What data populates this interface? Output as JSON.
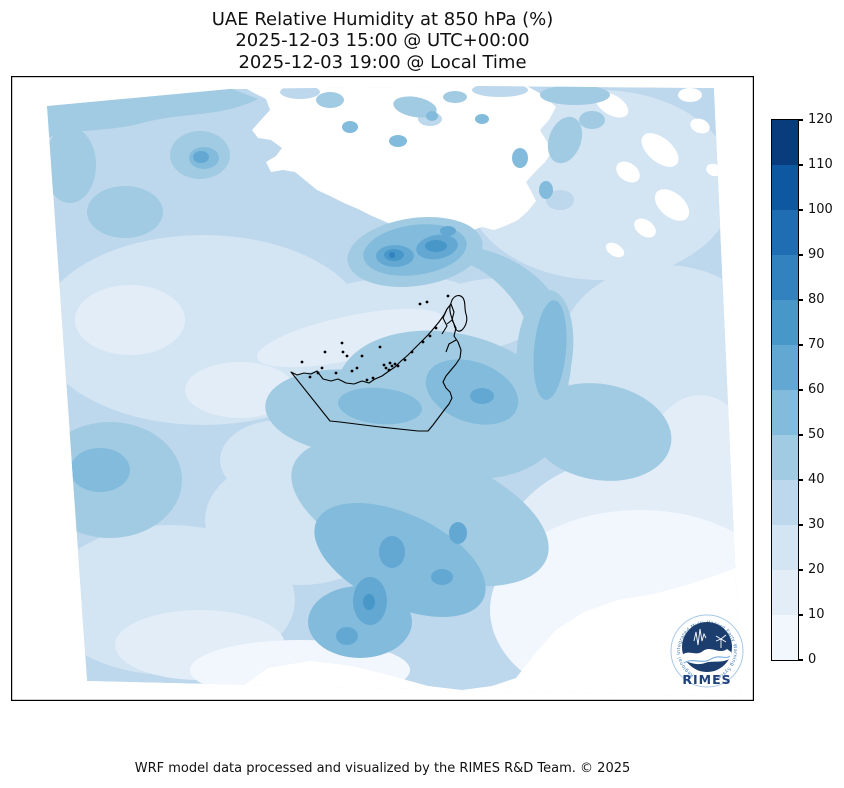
{
  "title": {
    "line1": "UAE Relative Humidity at 850 hPa (%)",
    "line2": "2025-12-03 15:00 @ UTC+00:00",
    "line3": "2025-12-03 19:00 @ Local Time"
  },
  "footer": "WRF model data processed and visualized by the RIMES R&D Team. © 2025",
  "colorbar": {
    "ticks": [
      0,
      10,
      20,
      30,
      40,
      50,
      60,
      70,
      80,
      90,
      100,
      110,
      120
    ],
    "segment_colors_low_to_high": [
      "#f2f7fd",
      "#e2edf8",
      "#d3e4f3",
      "#bdd7ec",
      "#a1cbe2",
      "#82bbdb",
      "#63a8d3",
      "#4897c9",
      "#3182be",
      "#1f6eb3",
      "#0e58a2",
      "#083c7d"
    ]
  },
  "chart_data": {
    "type": "filled-contour-map",
    "variable": "Relative Humidity at 850 hPa (%)",
    "region": "UAE and surrounding Gulf / Arabian Peninsula model domain",
    "levels": [
      0,
      10,
      20,
      30,
      40,
      50,
      60,
      70,
      80,
      90,
      100,
      110,
      120
    ],
    "colormap_colors": [
      "#f2f7fd",
      "#e2edf8",
      "#d3e4f3",
      "#bdd7ec",
      "#a1cbe2",
      "#82bbdb",
      "#63a8d3",
      "#4897c9",
      "#3182be",
      "#1f6eb3",
      "#0e58a2",
      "#083c7d"
    ],
    "legend_position": "right",
    "outline_color": "#000000",
    "observed_extremes": {
      "highest_shaded_band": "70-80",
      "lowest_shaded_band": "below 10 (white patches north of UAE and over southeastern desert)"
    }
  },
  "logo": {
    "wordmark": "RIMES",
    "ring_text": "Regional Integrated Multi-Hazard Early Warning System",
    "primary_color": "#1d3f7a",
    "accent_color": "#3d7ab5"
  }
}
